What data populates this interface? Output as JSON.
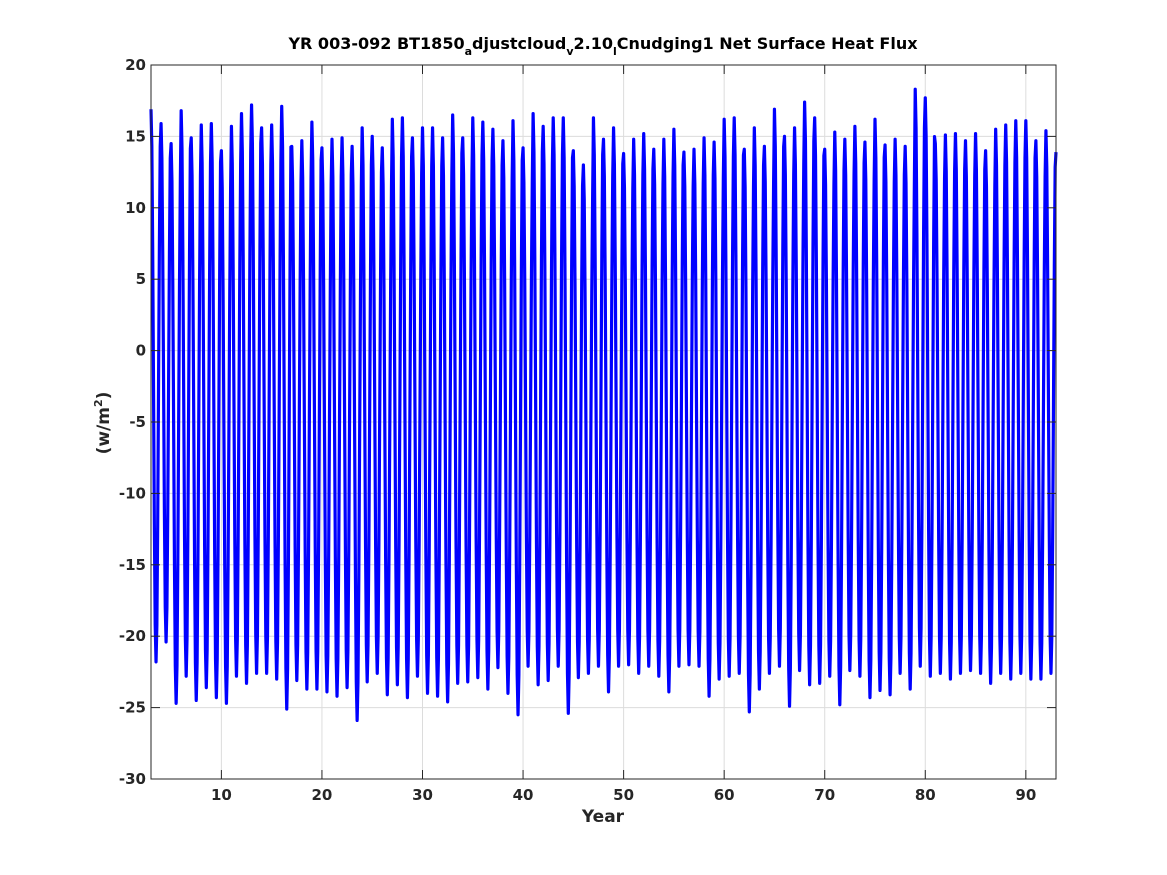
{
  "chart_data": {
    "type": "line",
    "title": {
      "prefix": "YR 003-092 BT1850",
      "sub1": "a",
      "part2": "djustcloud",
      "sub2": "v",
      "part3": "2.10",
      "sub3": "l",
      "suffix": "Cnudging1 Net Surface Heat Flux"
    },
    "xlabel": "Year",
    "ylabel": {
      "prefix": "(w/m",
      "sup": "2",
      "suffix": ")"
    },
    "xlim": [
      3,
      93
    ],
    "ylim": [
      -30,
      20
    ],
    "xticks": [
      10,
      20,
      30,
      40,
      50,
      60,
      70,
      80,
      90
    ],
    "yticks": [
      -30,
      -25,
      -20,
      -15,
      -10,
      -5,
      0,
      5,
      10,
      15,
      20
    ],
    "grid": true,
    "legend": "none",
    "series": [
      {
        "color": "#0000ff",
        "sampling": "monthly, 12 values per year, starting year 3",
        "annual_maxima": [
          16.9,
          15.9,
          14.5,
          16.8,
          14.9,
          15.8,
          15.9,
          14.0,
          15.7,
          16.6,
          17.2,
          15.6,
          15.8,
          17.1,
          14.3,
          14.7,
          16.0,
          14.2,
          14.8,
          14.9,
          14.3,
          15.6,
          15.0,
          14.2,
          16.2,
          16.3,
          14.9,
          15.6,
          15.6,
          14.9,
          16.5,
          14.9,
          16.3,
          16.0,
          15.5,
          14.7,
          16.1,
          14.2,
          16.6,
          15.7,
          16.3,
          16.3,
          14.0,
          13.0,
          16.3,
          14.8,
          15.6,
          13.8,
          14.8,
          15.2,
          14.1,
          14.8,
          15.5,
          13.9,
          14.1,
          14.9,
          14.6,
          16.2,
          16.3,
          14.1,
          15.6,
          14.3,
          16.9,
          15.0,
          15.6,
          17.4,
          16.3,
          14.1,
          15.3,
          14.8,
          15.7,
          14.6,
          16.2,
          14.4,
          14.8,
          14.3,
          18.3,
          17.7,
          14.5,
          15.1,
          15.2,
          14.7,
          15.2,
          14.0,
          15.5,
          15.8,
          16.1,
          16.1,
          14.7,
          15.4
        ],
        "annual_minima": [
          -21.8,
          -20.4,
          -24.7,
          -22.8,
          -24.5,
          -23.6,
          -24.3,
          -24.7,
          -22.8,
          -23.3,
          -22.6,
          -22.6,
          -23.0,
          -25.1,
          -23.1,
          -23.7,
          -23.7,
          -23.9,
          -24.2,
          -23.6,
          -25.9,
          -23.2,
          -22.6,
          -24.1,
          -23.4,
          -24.3,
          -22.8,
          -24.0,
          -24.2,
          -24.6,
          -23.3,
          -23.2,
          -22.9,
          -23.7,
          -22.2,
          -24.0,
          -25.5,
          -22.1,
          -23.4,
          -23.1,
          -22.1,
          -25.4,
          -22.9,
          -22.6,
          -22.1,
          -23.9,
          -22.1,
          -22.0,
          -22.6,
          -22.1,
          -22.8,
          -23.9,
          -22.1,
          -22.0,
          -22.1,
          -24.2,
          -23.0,
          -22.8,
          -22.6,
          -25.3,
          -23.7,
          -22.6,
          -22.1,
          -24.9,
          -22.4,
          -23.4,
          -23.3,
          -22.8,
          -24.8,
          -22.4,
          -22.8,
          -24.3,
          -23.8,
          -24.1,
          -22.6,
          -23.7,
          -22.1,
          -22.8,
          -22.6,
          -23.0,
          -22.6,
          -22.4,
          -22.6,
          -23.3,
          -22.6,
          -23.0,
          -22.6,
          -23.0,
          -23.0,
          -22.6
        ]
      }
    ]
  }
}
